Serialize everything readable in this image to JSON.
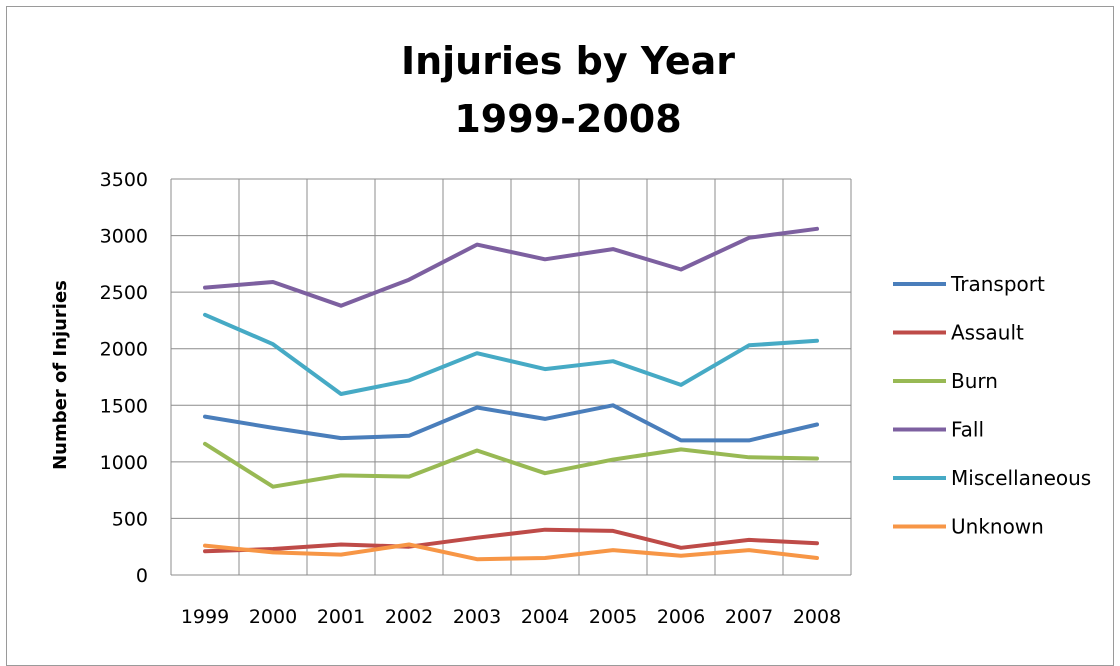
{
  "chart_data": {
    "type": "line",
    "title": "Injuries by Year",
    "subtitle": "1999-2008",
    "xlabel": "",
    "ylabel": "Number of Injuries",
    "ylim": [
      0,
      3500
    ],
    "yticks": [
      "0",
      "500",
      "1000",
      "1500",
      "2000",
      "2500",
      "3000",
      "3500"
    ],
    "categories": [
      "1999",
      "2000",
      "2001",
      "2002",
      "2003",
      "2004",
      "2005",
      "2006",
      "2007",
      "2008"
    ],
    "grid": true,
    "legend_position": "right",
    "series": [
      {
        "name": "Transport",
        "color": "#4a7ebb",
        "values": [
          1400,
          1300,
          1210,
          1230,
          1480,
          1380,
          1500,
          1190,
          1190,
          1330
        ]
      },
      {
        "name": "Assault",
        "color": "#be4b48",
        "values": [
          210,
          230,
          270,
          250,
          330,
          400,
          390,
          240,
          310,
          280
        ]
      },
      {
        "name": "Burn",
        "color": "#98b954",
        "values": [
          1160,
          780,
          880,
          870,
          1100,
          900,
          1020,
          1110,
          1040,
          1030
        ]
      },
      {
        "name": "Fall",
        "color": "#7d60a0",
        "values": [
          2540,
          2590,
          2380,
          2610,
          2920,
          2790,
          2880,
          2700,
          2980,
          3060
        ]
      },
      {
        "name": "Miscellaneous",
        "color": "#46aac5",
        "values": [
          2300,
          2040,
          1600,
          1720,
          1960,
          1820,
          1890,
          1680,
          2030,
          2070
        ]
      },
      {
        "name": "Unknown",
        "color": "#f79646",
        "values": [
          260,
          200,
          180,
          270,
          140,
          150,
          220,
          170,
          220,
          150
        ]
      }
    ]
  }
}
